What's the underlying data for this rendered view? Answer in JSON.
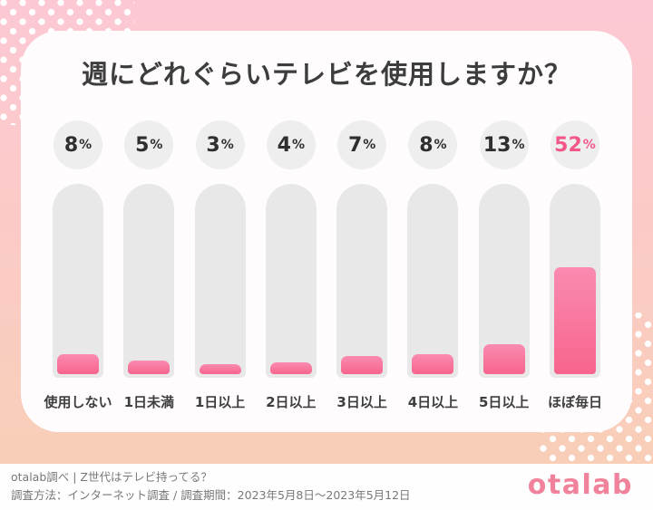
{
  "chart_data": {
    "type": "bar",
    "title": "週にどれぐらいテレビを使用しますか？",
    "unit": "%",
    "categories": [
      "使用しない",
      "1日未満",
      "1日以上",
      "2日以上",
      "3日以上",
      "4日以上",
      "5日以上",
      "ほぼ毎日"
    ],
    "values": [
      8,
      5,
      3,
      4,
      7,
      8,
      13,
      52
    ],
    "highlight_index": 7,
    "ylim": [
      0,
      52
    ],
    "orientation": "vertical",
    "grid": false,
    "legend": false
  },
  "footer": {
    "source_line": "otalab調べ | Z世代はテレビ持ってる？",
    "method_line": "調査方法：インターネット調査 / 調査期間：2023年5月8日〜2023年5月12日",
    "logo_text": "otalab"
  },
  "colors": {
    "background_top": "#fcc8d4",
    "background_bottom": "#f8cfb4",
    "card": "#fffcfd",
    "track": "#e9e8e8",
    "badge_circle": "#efeeee",
    "bar_gradient_top": "#fa8bb0",
    "bar_gradient_bottom": "#f7648d",
    "highlight_text": "#f25787",
    "title_text": "#3d3d3d",
    "logo_pink": "#f0839b"
  }
}
